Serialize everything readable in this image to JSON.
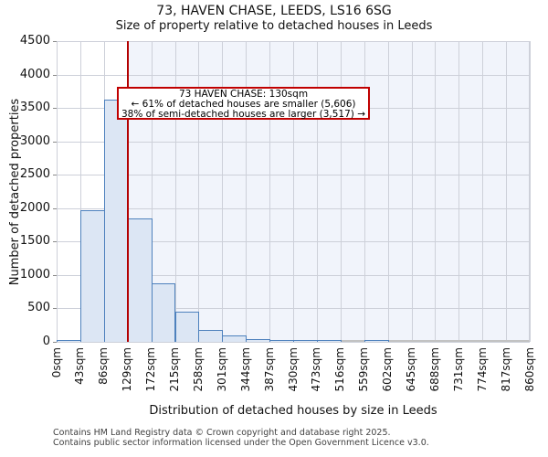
{
  "title": "73, HAVEN CHASE, LEEDS, LS16 6SG",
  "subtitle": "Size of property relative to detached houses in Leeds",
  "annotation": {
    "line1": "73 HAVEN CHASE: 130sqm",
    "line2": "← 61% of detached houses are smaller (5,606)",
    "line3": "38% of semi-detached houses are larger (3,517) →"
  },
  "chart_data": {
    "type": "bar",
    "title": "73, HAVEN CHASE, LEEDS, LS16 6SG — Size of property relative to detached houses in Leeds",
    "xlabel": "Distribution of detached houses by size in Leeds",
    "ylabel": "Number of detached properties",
    "x_tick_labels": [
      "0sqm",
      "43sqm",
      "86sqm",
      "129sqm",
      "172sqm",
      "215sqm",
      "258sqm",
      "301sqm",
      "344sqm",
      "387sqm",
      "430sqm",
      "473sqm",
      "516sqm",
      "559sqm",
      "602sqm",
      "645sqm",
      "688sqm",
      "731sqm",
      "774sqm",
      "817sqm",
      "860sqm"
    ],
    "bin_width_sqm": 43,
    "xlim": [
      0,
      860
    ],
    "values": [
      15,
      1975,
      3625,
      1850,
      875,
      445,
      180,
      90,
      45,
      25,
      12,
      8,
      0,
      15,
      0,
      0,
      0,
      0,
      0,
      0
    ],
    "y_ticks": [
      0,
      500,
      1000,
      1500,
      2000,
      2500,
      3000,
      3500,
      4000,
      4500
    ],
    "ylim": [
      0,
      4500
    ],
    "grid": true,
    "marker_sqm": 130,
    "marker_color": "#b30000",
    "bar_fill": "#dce6f4",
    "bar_edge": "#4e81bd",
    "grid_color": "#cdd0d9",
    "shade_color": "#f1f4fb",
    "annotation_border": "#c00000"
  },
  "footer": {
    "line1": "Contains HM Land Registry data © Crown copyright and database right 2025.",
    "line2": "Contains public sector information licensed under the Open Government Licence v3.0."
  }
}
